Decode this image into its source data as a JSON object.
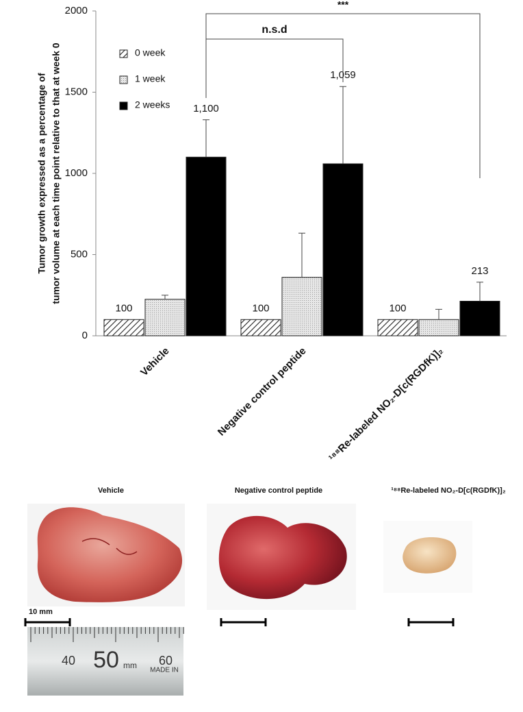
{
  "chart_data": {
    "type": "bar",
    "ylabel": [
      "Tumor growth expressed as a percentage of",
      "tumor volume at each time point relative to that at week 0"
    ],
    "categories": [
      "Vehicle",
      "Negative control peptide",
      "¹⁸⁸Re-labeled NO₂-D[c(RGDfK)]₂"
    ],
    "series": [
      {
        "name": "0 week",
        "color": "hatch",
        "values": [
          100,
          100,
          100
        ],
        "value_labels": [
          "100",
          "100",
          "100"
        ]
      },
      {
        "name": "1 week",
        "color": "#d4d4d4",
        "values": [
          225,
          360,
          100
        ],
        "errors": [
          25,
          272,
          63
        ]
      },
      {
        "name": "2 weeks",
        "color": "#000000",
        "values": [
          1100,
          1059,
          213
        ],
        "errors": [
          230,
          476,
          117
        ],
        "value_labels": [
          "1,100",
          "1,059",
          "213"
        ]
      }
    ],
    "ylim": [
      0,
      2000
    ],
    "yticks": [
      0,
      500,
      1000,
      1500,
      2000
    ],
    "annotations": [
      "n.s.d",
      "***"
    ]
  },
  "photos": {
    "labels": [
      "Vehicle",
      "Negative control peptide",
      "¹⁸⁸Re-labeled NO₂-D[c(RGDfK)]₂"
    ],
    "scale_bar": "10 mm",
    "ruler_text": [
      "40",
      "50",
      "mm",
      "60",
      "MADE IN"
    ]
  }
}
